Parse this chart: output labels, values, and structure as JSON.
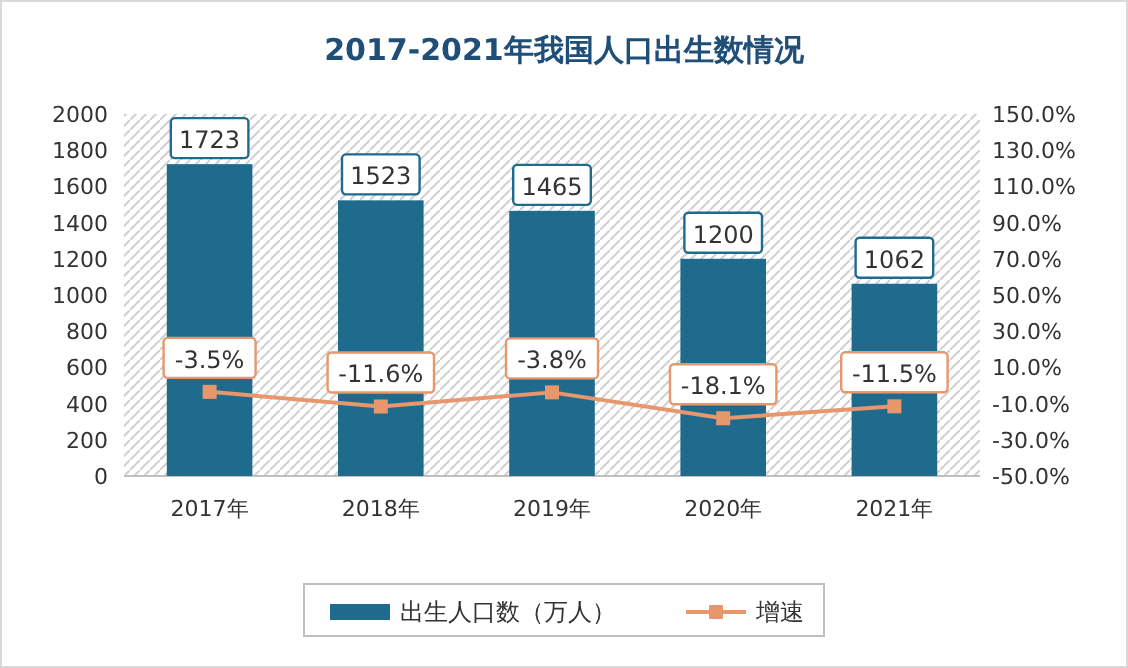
{
  "chart_data": {
    "type": "bar",
    "title": "2017-2021年我国人口出生数情况",
    "categories": [
      "2017年",
      "2018年",
      "2019年",
      "2020年",
      "2021年"
    ],
    "series": [
      {
        "name": "出生人口数（万人）",
        "color": "#1f6b8e",
        "values": [
          1723,
          1523,
          1465,
          1200,
          1062
        ],
        "value_labels": [
          "1723",
          "1523",
          "1465",
          "1200",
          "1062"
        ]
      },
      {
        "name": "增速",
        "type": "line",
        "axis": "y2",
        "color": "#e8966c",
        "marker": "square",
        "values": [
          -3.5,
          -11.6,
          -3.8,
          -18.1,
          -11.5
        ],
        "value_labels": [
          "-3.5%",
          "-11.6%",
          "-3.8%",
          "-18.1%",
          "-11.5%"
        ]
      }
    ],
    "ylim": [
      0,
      2000
    ],
    "yticks": [
      0,
      200,
      400,
      600,
      800,
      1000,
      1200,
      1400,
      1600,
      1800,
      2000
    ],
    "y2lim": [
      -50,
      150
    ],
    "y2ticks": [
      {
        "value": -50,
        "label": "-50.0%"
      },
      {
        "value": -30,
        "label": "-30.0%"
      },
      {
        "value": -10,
        "label": "-10.0%"
      },
      {
        "value": 10,
        "label": "10.0%"
      },
      {
        "value": 30,
        "label": "30.0%"
      },
      {
        "value": 50,
        "label": "50.0%"
      },
      {
        "value": 70,
        "label": "70.0%"
      },
      {
        "value": 90,
        "label": "90.0%"
      },
      {
        "value": 110,
        "label": "110.0%"
      },
      {
        "value": 130,
        "label": "130.0%"
      },
      {
        "value": 150,
        "label": "150.0%"
      }
    ],
    "legend": "bottom"
  }
}
